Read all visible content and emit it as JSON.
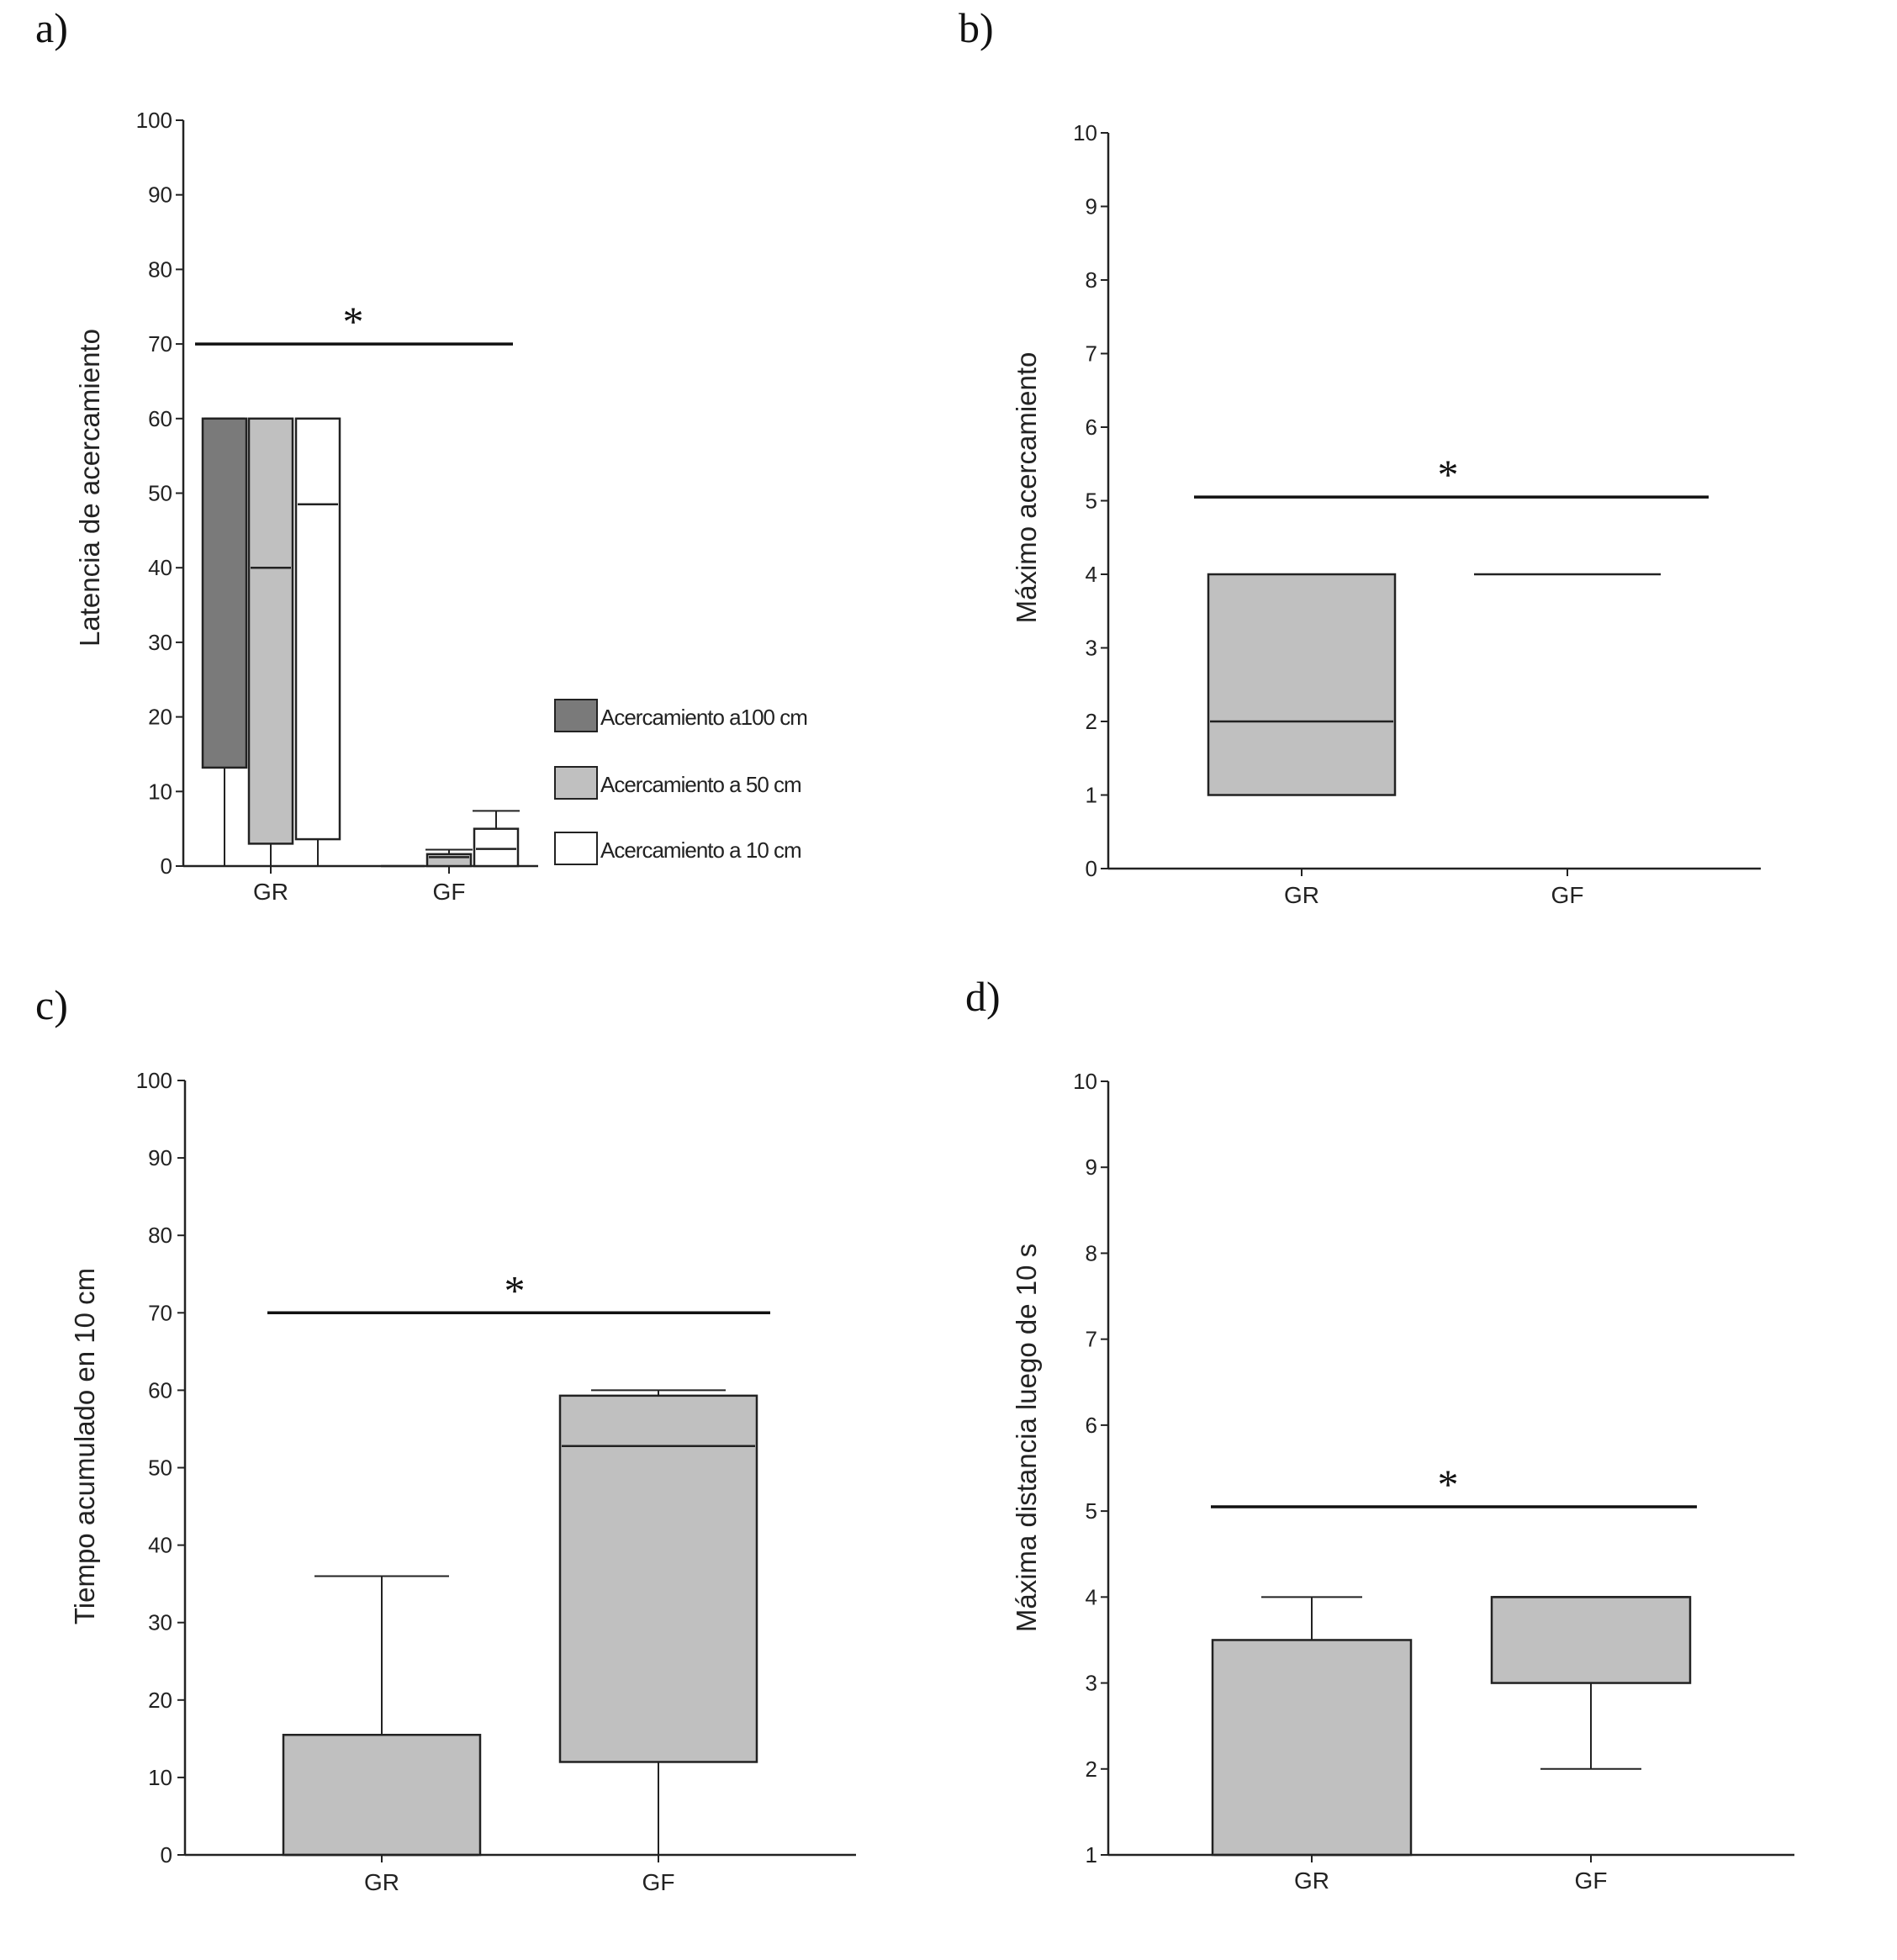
{
  "chart_data": [
    {
      "type": "box",
      "panel": "a)",
      "ylabel": "Latencia de acercamiento",
      "ylim": [
        0,
        100
      ],
      "yticks": [
        "0",
        "10",
        "20",
        "30",
        "40",
        "50",
        "60",
        "70",
        "80",
        "90",
        "100"
      ],
      "categories": [
        "GR",
        "GF"
      ],
      "legend_placement": "bottom-right",
      "series": [
        {
          "name": "Acercamiento a100 cm",
          "color": "#7a7a7a",
          "boxes": [
            {
              "category": "GR",
              "whisker_low": 0,
              "q1": 13.2,
              "median": 60,
              "q3": 60,
              "whisker_high": 60
            },
            {
              "category": "GF",
              "whisker_low": 0,
              "q1": 0,
              "median": 0,
              "q3": 0,
              "whisker_high": 0
            }
          ]
        },
        {
          "name": "Acercamiento a 50 cm",
          "color": "#c0c0c0",
          "boxes": [
            {
              "category": "GR",
              "whisker_low": 0,
              "q1": 3,
              "median": 40,
              "q3": 60,
              "whisker_high": 60
            },
            {
              "category": "GF",
              "whisker_low": 0,
              "q1": 0,
              "median": 1.2,
              "q3": 1.6,
              "whisker_high": 2.2
            }
          ]
        },
        {
          "name": "Acercamiento a 10 cm",
          "color": "#ffffff",
          "boxes": [
            {
              "category": "GR",
              "whisker_low": 0,
              "q1": 3.6,
              "median": 48.5,
              "q3": 60,
              "whisker_high": 60
            },
            {
              "category": "GF",
              "whisker_low": 0,
              "q1": 0,
              "median": 2.3,
              "q3": 5,
              "whisker_high": 7.4
            }
          ]
        }
      ],
      "significance": {
        "label": "*",
        "y": 70
      }
    },
    {
      "type": "box",
      "panel": "b)",
      "ylabel": "Máximo acercamiento",
      "ylim": [
        0,
        10
      ],
      "yticks": [
        "0",
        "1",
        "2",
        "3",
        "4",
        "5",
        "6",
        "7",
        "8",
        "9",
        "10"
      ],
      "categories": [
        "GR",
        "GF"
      ],
      "series": [
        {
          "color": "#c0c0c0",
          "boxes": [
            {
              "category": "GR",
              "whisker_low": 1,
              "q1": 1,
              "median": 2,
              "q3": 4,
              "whisker_high": 4
            },
            {
              "category": "GF",
              "whisker_low": 4,
              "q1": 4,
              "median": 4,
              "q3": 4,
              "whisker_high": 4
            }
          ]
        }
      ],
      "significance": {
        "label": "*",
        "y": 5.05
      }
    },
    {
      "type": "box",
      "panel": "c)",
      "ylabel": "Tiempo acumulado en 10 cm",
      "ylim": [
        0,
        100
      ],
      "yticks": [
        "0",
        "10",
        "20",
        "30",
        "40",
        "50",
        "60",
        "70",
        "80",
        "90",
        "100"
      ],
      "categories": [
        "GR",
        "GF"
      ],
      "series": [
        {
          "color": "#c0c0c0",
          "boxes": [
            {
              "category": "GR",
              "whisker_low": 0,
              "q1": 0,
              "median": 0,
              "q3": 15.5,
              "whisker_high": 36
            },
            {
              "category": "GF",
              "whisker_low": 0,
              "q1": 12,
              "median": 52.8,
              "q3": 59.3,
              "whisker_high": 60
            }
          ]
        }
      ],
      "significance": {
        "label": "*",
        "y": 70
      }
    },
    {
      "type": "box",
      "panel": "d)",
      "ylabel": "Máxima distancia luego de 10 s",
      "ylim": [
        1,
        10
      ],
      "yticks": [
        "1",
        "2",
        "3",
        "4",
        "5",
        "6",
        "7",
        "8",
        "9",
        "10"
      ],
      "categories": [
        "GR",
        "GF"
      ],
      "series": [
        {
          "color": "#c0c0c0",
          "boxes": [
            {
              "category": "GR",
              "whisker_low": 1,
              "q1": 1,
              "median": 1,
              "q3": 3.5,
              "whisker_high": 4
            },
            {
              "category": "GF",
              "whisker_low": 2,
              "q1": 3,
              "median": 4,
              "q3": 4,
              "whisker_high": 4
            }
          ]
        }
      ],
      "significance": {
        "label": "*",
        "y": 5.05
      }
    }
  ]
}
